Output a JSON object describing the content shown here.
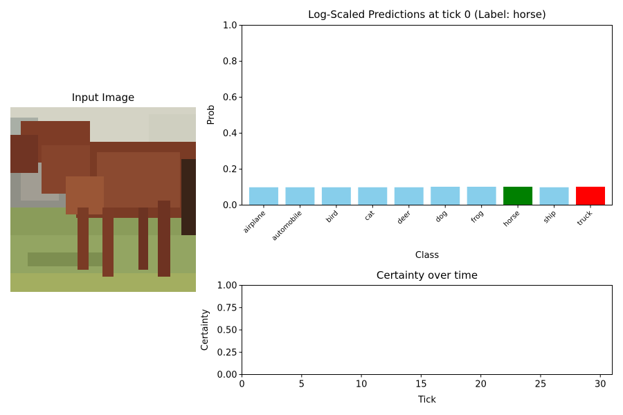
{
  "image_panel": {
    "title": "Input Image"
  },
  "chart_data": [
    {
      "type": "bar",
      "title": "Log-Scaled Predictions at tick 0 (Label: horse)",
      "xlabel": "Class",
      "ylabel": "Prob",
      "ylim": [
        0,
        1
      ],
      "yticks": [
        0.0,
        0.2,
        0.4,
        0.6,
        0.8,
        1.0
      ],
      "ytick_labels": [
        "0.0",
        "0.2",
        "0.4",
        "0.6",
        "0.8",
        "1.0"
      ],
      "categories": [
        "airplane",
        "automobile",
        "bird",
        "cat",
        "deer",
        "dog",
        "frog",
        "horse",
        "ship",
        "truck"
      ],
      "values": [
        0.099,
        0.099,
        0.099,
        0.099,
        0.099,
        0.102,
        0.102,
        0.102,
        0.099,
        0.102
      ],
      "colors": [
        "#87ceeb",
        "#87ceeb",
        "#87ceeb",
        "#87ceeb",
        "#87ceeb",
        "#87ceeb",
        "#87ceeb",
        "#008000",
        "#87ceeb",
        "#ff0000"
      ],
      "grid": false
    },
    {
      "type": "line",
      "title": "Certainty over time",
      "xlabel": "Tick",
      "ylabel": "Certainty",
      "xlim": [
        0,
        31
      ],
      "ylim": [
        0,
        1
      ],
      "xticks": [
        0,
        5,
        10,
        15,
        20,
        25,
        30
      ],
      "xtick_labels": [
        "0",
        "5",
        "10",
        "15",
        "20",
        "25",
        "30"
      ],
      "yticks": [
        0.0,
        0.25,
        0.5,
        0.75,
        1.0
      ],
      "ytick_labels": [
        "0.00",
        "0.25",
        "0.50",
        "0.75",
        "1.00"
      ],
      "series": [],
      "grid": false
    }
  ]
}
